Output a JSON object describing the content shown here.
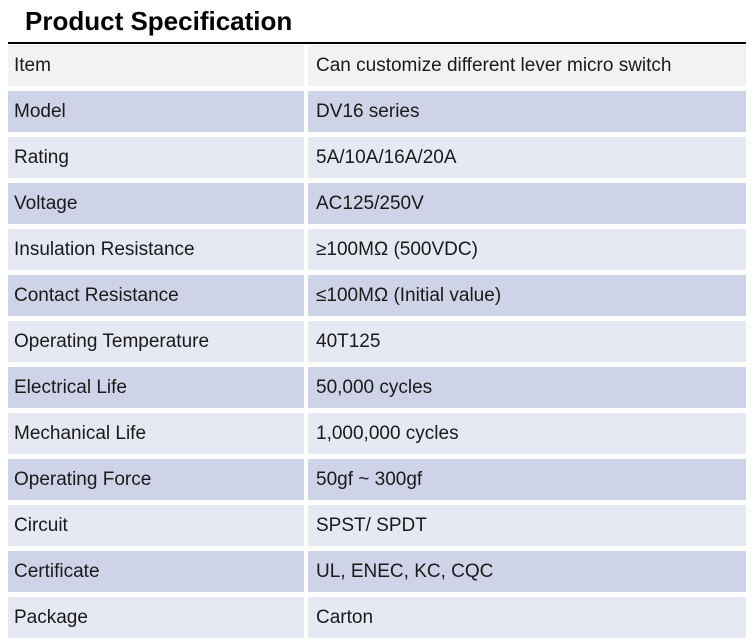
{
  "page": {
    "title": "Product Specification"
  },
  "table": {
    "rows": [
      {
        "label": "Item",
        "value": "Can customize different lever micro switch"
      },
      {
        "label": "Model",
        "value": "DV16 series"
      },
      {
        "label": "Rating",
        "value": "5A/10A/16A/20A"
      },
      {
        "label": "Voltage",
        "value": "AC125/250V"
      },
      {
        "label": "Insulation Resistance",
        "value": "≥100MΩ (500VDC)"
      },
      {
        "label": "Contact Resistance",
        "value": "≤100MΩ (Initial value)"
      },
      {
        "label": "Operating Temperature",
        "value": "40T125"
      },
      {
        "label": "Electrical Life",
        "value": "50,000 cycles"
      },
      {
        "label": "Mechanical Life",
        "value": "1,000,000 cycles"
      },
      {
        "label": "Operating Force",
        "value": "50gf ~ 300gf"
      },
      {
        "label": "Circuit",
        "value": "SPST/ SPDT"
      },
      {
        "label": "Certificate",
        "value": "UL, ENEC, KC, CQC"
      },
      {
        "label": "Package",
        "value": "Carton"
      }
    ],
    "colors": {
      "header_row_bg": "#F2F2F2",
      "band_dark_bg": "#CED3E8",
      "band_light_bg": "#E6E8F3",
      "text": "#1A1A1A",
      "top_border": "#000000"
    }
  }
}
